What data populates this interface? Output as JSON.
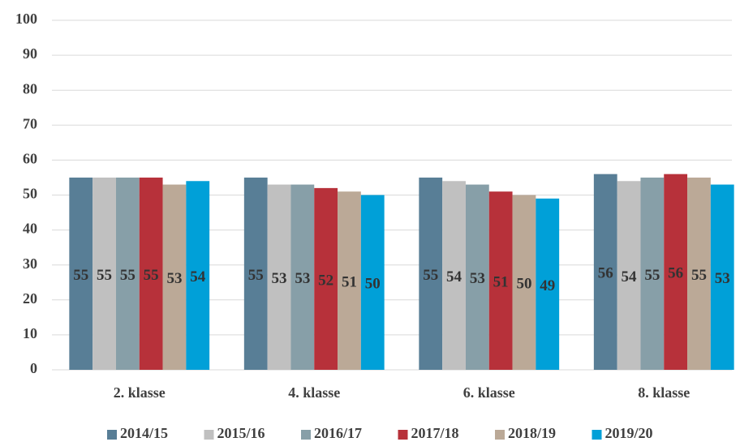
{
  "chart_data": {
    "type": "bar",
    "categories": [
      "2. klasse",
      "4. klasse",
      "6. klasse",
      "8. klasse"
    ],
    "series": [
      {
        "name": "2014/15",
        "color": "#587e96",
        "values": [
          55,
          55,
          55,
          56
        ]
      },
      {
        "name": "2015/16",
        "color": "#c0c0c0",
        "values": [
          55,
          53,
          54,
          54
        ]
      },
      {
        "name": "2016/17",
        "color": "#879fa8",
        "values": [
          55,
          53,
          53,
          55
        ]
      },
      {
        "name": "2017/18",
        "color": "#b7313a",
        "values": [
          55,
          52,
          51,
          56
        ]
      },
      {
        "name": "2018/19",
        "color": "#bba997",
        "values": [
          53,
          51,
          50,
          55
        ]
      },
      {
        "name": "2019/20",
        "color": "#00a0d8",
        "values": [
          54,
          50,
          49,
          53
        ]
      }
    ],
    "ylim": [
      0,
      100
    ],
    "yticks": [
      0,
      10,
      20,
      30,
      40,
      50,
      60,
      70,
      80,
      90,
      100
    ],
    "grid": true,
    "legend": "bottom"
  }
}
